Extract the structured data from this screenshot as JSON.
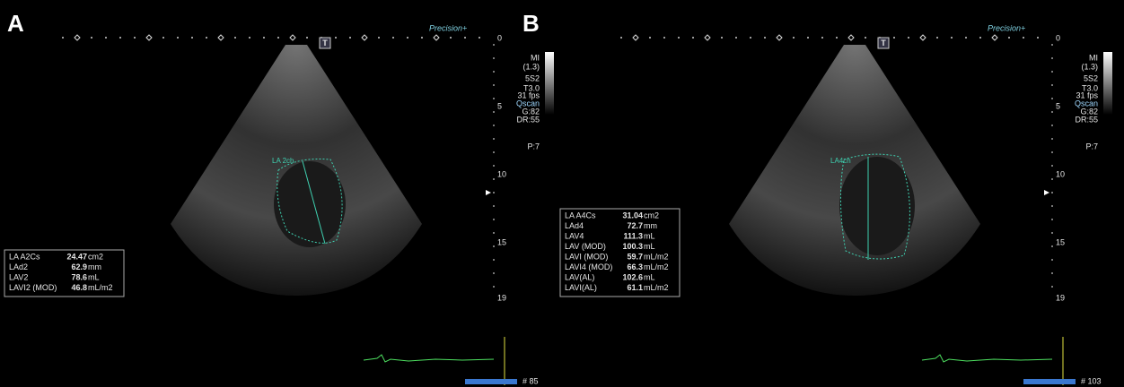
{
  "panels": [
    {
      "label": "A",
      "logo": "Precision+",
      "marker": "T",
      "depth_labels": [
        "0",
        "5",
        "10",
        "15",
        "19"
      ],
      "settings": [
        "MI",
        "(1.3)",
        "5S2",
        "T3.0",
        "31 fps",
        "Qscan",
        "G:82",
        "DR:55",
        "P:7"
      ],
      "chamber_label": "LA 2ch",
      "measurements": [
        [
          "LA A2Cs",
          "24.47",
          "cm2"
        ],
        [
          "LAd2",
          "62.9",
          "mm"
        ],
        [
          "LAV2",
          "78.6",
          "mL"
        ],
        [
          "LAVI2 (MOD)",
          "46.8",
          "mL/m2"
        ]
      ],
      "frame": "# 85"
    },
    {
      "label": "B",
      "logo": "Precision+",
      "marker": "T",
      "depth_labels": [
        "0",
        "5",
        "10",
        "15",
        "19"
      ],
      "settings": [
        "MI",
        "(1.3)",
        "5S2",
        "T3.0",
        "31 fps",
        "Qscan",
        "G:82",
        "DR:55",
        "P:7"
      ],
      "chamber_label": "LA4ch",
      "measurements": [
        [
          "LA A4Cs",
          "31.04",
          "cm2"
        ],
        [
          "LAd4",
          "72.7",
          "mm"
        ],
        [
          "LAV4",
          "111.3",
          "mL"
        ],
        [
          "LAV (MOD)",
          "100.3",
          "mL"
        ],
        [
          "LAVI (MOD)",
          "59.7",
          "mL/m2"
        ],
        [
          "LAVI4 (MOD)",
          "66.3",
          "mL/m2"
        ],
        [
          "LAV(AL)",
          "102.6",
          "mL"
        ],
        [
          "LAVI(AL)",
          "61.1",
          "mL/m2"
        ]
      ],
      "frame": "# 103"
    }
  ]
}
